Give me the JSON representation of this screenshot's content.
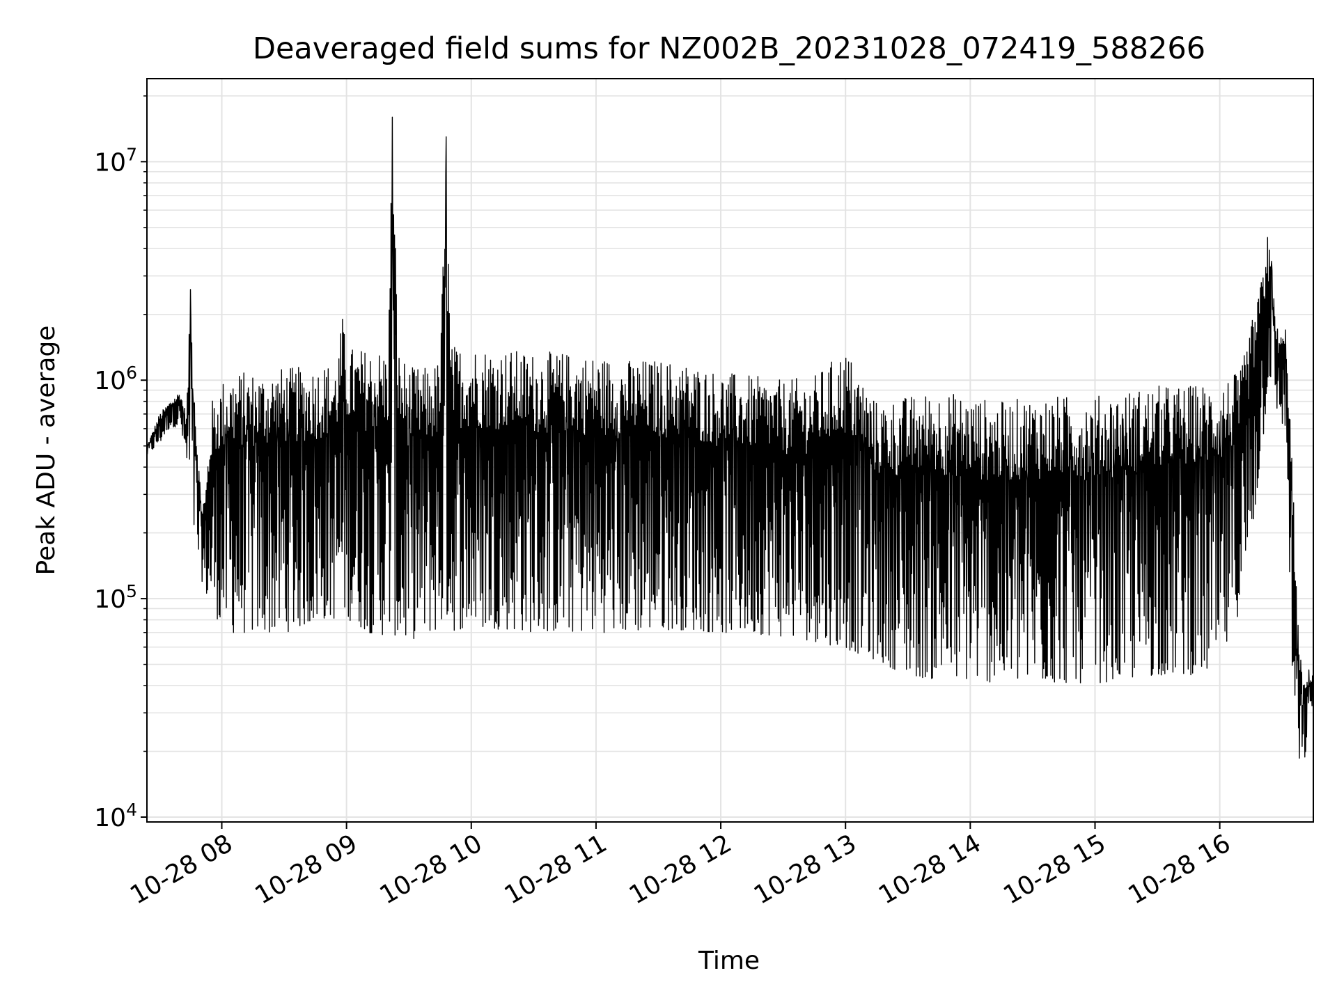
{
  "chart_data": {
    "type": "line",
    "title": "Deaveraged field sums for NZ002B_20231028_072419_588266",
    "xlabel": "Time",
    "ylabel": "Peak ADU - average",
    "yscale": "log",
    "ylim": [
      9500,
      24000000
    ],
    "xlim": [
      "2023-10-28 07:24",
      "2023-10-28 16:45"
    ],
    "grid": true,
    "line_color": "#000000",
    "y_ticks": [
      {
        "value": 10000,
        "base": "10",
        "exp": "4"
      },
      {
        "value": 100000,
        "base": "10",
        "exp": "5"
      },
      {
        "value": 1000000,
        "base": "10",
        "exp": "6"
      },
      {
        "value": 10000000,
        "base": "10",
        "exp": "7"
      }
    ],
    "x_ticks": [
      {
        "time": "2023-10-28 08:00",
        "label": "10-28 08"
      },
      {
        "time": "2023-10-28 09:00",
        "label": "10-28 09"
      },
      {
        "time": "2023-10-28 10:00",
        "label": "10-28 10"
      },
      {
        "time": "2023-10-28 11:00",
        "label": "10-28 11"
      },
      {
        "time": "2023-10-28 12:00",
        "label": "10-28 12"
      },
      {
        "time": "2023-10-28 13:00",
        "label": "10-28 13"
      },
      {
        "time": "2023-10-28 14:00",
        "label": "10-28 14"
      },
      {
        "time": "2023-10-28 15:00",
        "label": "10-28 15"
      },
      {
        "time": "2023-10-28 16:00",
        "label": "10-28 16"
      }
    ],
    "series": [
      {
        "x": [
          "2023-10-28 07:24",
          "2023-10-28 07:30",
          "2023-10-28 07:35",
          "2023-10-28 07:40",
          "2023-10-28 07:43",
          "2023-10-28 07:45",
          "2023-10-28 07:48",
          "2023-10-28 07:50",
          "2023-10-28 07:52",
          "2023-10-28 07:55",
          "2023-10-28 08:00",
          "2023-10-28 08:05",
          "2023-10-28 08:10",
          "2023-10-28 08:15",
          "2023-10-28 08:20",
          "2023-10-28 08:30",
          "2023-10-28 08:40",
          "2023-10-28 08:50",
          "2023-10-28 08:55",
          "2023-10-28 08:58",
          "2023-10-28 09:00",
          "2023-10-28 09:05",
          "2023-10-28 09:10",
          "2023-10-28 09:15",
          "2023-10-28 09:20",
          "2023-10-28 09:22",
          "2023-10-28 09:25",
          "2023-10-28 09:30",
          "2023-10-28 09:35",
          "2023-10-28 09:40",
          "2023-10-28 09:45",
          "2023-10-28 09:48",
          "2023-10-28 09:50",
          "2023-10-28 09:55",
          "2023-10-28 10:00",
          "2023-10-28 10:15",
          "2023-10-28 10:30",
          "2023-10-28 10:45",
          "2023-10-28 11:00",
          "2023-10-28 11:15",
          "2023-10-28 11:30",
          "2023-10-28 11:45",
          "2023-10-28 12:00",
          "2023-10-28 12:15",
          "2023-10-28 12:30",
          "2023-10-28 12:45",
          "2023-10-28 13:00",
          "2023-10-28 13:15",
          "2023-10-28 13:30",
          "2023-10-28 13:45",
          "2023-10-28 14:00",
          "2023-10-28 14:15",
          "2023-10-28 14:30",
          "2023-10-28 14:45",
          "2023-10-28 15:00",
          "2023-10-28 15:15",
          "2023-10-28 15:30",
          "2023-10-28 15:45",
          "2023-10-28 16:00",
          "2023-10-28 16:10",
          "2023-10-28 16:15",
          "2023-10-28 16:20",
          "2023-10-28 16:23",
          "2023-10-28 16:25",
          "2023-10-28 16:27",
          "2023-10-28 16:30",
          "2023-10-28 16:32",
          "2023-10-28 16:35",
          "2023-10-28 16:37",
          "2023-10-28 16:40",
          "2023-10-28 16:43",
          "2023-10-28 16:45"
        ],
        "upper": [
          500000,
          700000,
          800000,
          900000,
          700000,
          2600000,
          600000,
          300000,
          300000,
          800000,
          1000000,
          1100000,
          1100000,
          1100000,
          1100000,
          1150000,
          1150000,
          1200000,
          1200000,
          1900000,
          1450000,
          1400000,
          1400000,
          1400000,
          1400000,
          16000000,
          1400000,
          1150000,
          1150000,
          1150000,
          1250000,
          13000000,
          1450000,
          1450000,
          1450000,
          1400000,
          1350000,
          1350000,
          1300000,
          1250000,
          1250000,
          1200000,
          1100000,
          1050000,
          1000000,
          1050000,
          1400000,
          800000,
          850000,
          900000,
          850000,
          800000,
          850000,
          850000,
          850000,
          900000,
          950000,
          950000,
          1000000,
          1100000,
          1800000,
          2800000,
          4500000,
          3500000,
          1800000,
          1600000,
          1800000,
          400000,
          100000,
          40000,
          48000,
          45000
        ],
        "lower": [
          450000,
          500000,
          600000,
          600000,
          400000,
          200000,
          150000,
          120000,
          100000,
          80000,
          65000,
          60000,
          60000,
          60000,
          60000,
          60000,
          65000,
          70000,
          70000,
          75000,
          70000,
          65000,
          60000,
          58000,
          58000,
          55000,
          52000,
          55000,
          58000,
          60000,
          62000,
          62000,
          60000,
          62000,
          62000,
          62000,
          60000,
          60000,
          60000,
          60000,
          62000,
          62000,
          60000,
          60000,
          58000,
          55000,
          50000,
          45000,
          38000,
          36000,
          36000,
          35000,
          35000,
          35000,
          35000,
          36000,
          38000,
          38000,
          40000,
          80000,
          150000,
          400000,
          800000,
          1000000,
          700000,
          600000,
          500000,
          30000,
          17000,
          15000,
          25000,
          35000
        ]
      }
    ]
  }
}
